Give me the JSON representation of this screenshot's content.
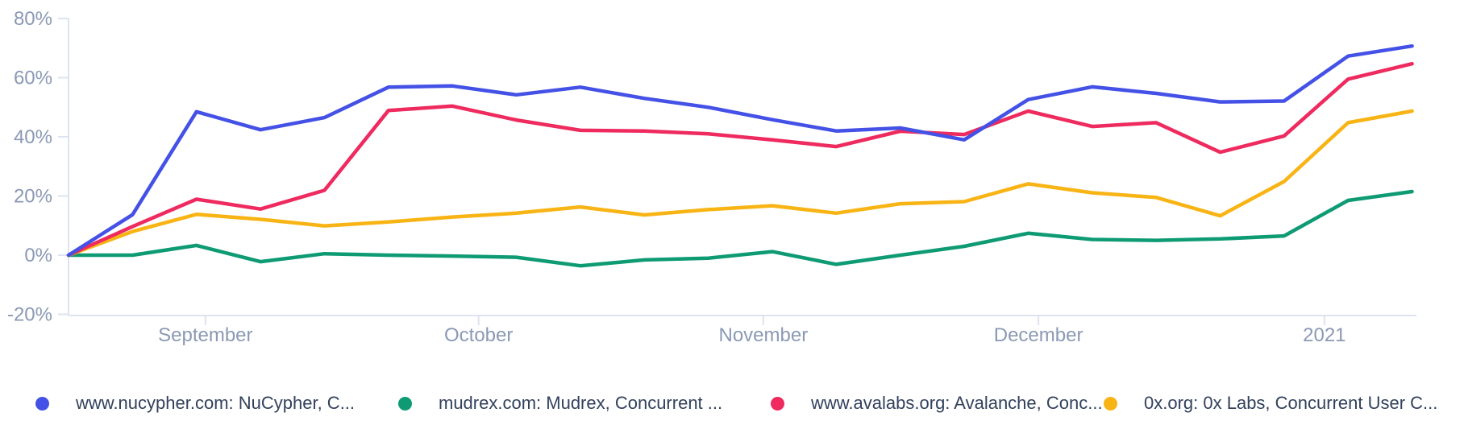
{
  "chart_data": {
    "type": "line",
    "title": "",
    "unit": "%",
    "ylim": [
      -20,
      80
    ],
    "grid": false,
    "legend_position": "bottom",
    "y_ticks": [
      {
        "label": "80%",
        "value": 80
      },
      {
        "label": "60%",
        "value": 60
      },
      {
        "label": "40%",
        "value": 40
      },
      {
        "label": "20%",
        "value": 20
      },
      {
        "label": "0%",
        "value": 0
      },
      {
        "label": "-20%",
        "value": -20
      }
    ],
    "x_ticks": [
      {
        "label": "September",
        "week": 2.14
      },
      {
        "label": "October",
        "week": 6.41
      },
      {
        "label": "November",
        "week": 10.86
      },
      {
        "label": "December",
        "week": 15.16
      },
      {
        "label": "2021",
        "week": 19.63
      }
    ],
    "weeks": 22,
    "series": [
      {
        "name": "www.nucypher.com: NuCypher, C...",
        "color": "#4451e6",
        "values": [
          0,
          13.7,
          48.5,
          42.4,
          46.5,
          56.8,
          57.2,
          54.2,
          56.8,
          53.0,
          50.0,
          45.8,
          42.0,
          43.0,
          39.0,
          52.6,
          56.9,
          54.7,
          51.8,
          52.1,
          67.3,
          70.7
        ]
      },
      {
        "name": "mudrex.com: Mudrex, Concurrent ...",
        "color": "#0e9b74",
        "values": [
          0,
          0,
          3.3,
          -2.2,
          0.5,
          0,
          -0.3,
          -0.7,
          -3.6,
          -1.6,
          -1.0,
          1.2,
          -3.1,
          0,
          3.0,
          7.4,
          5.3,
          5.0,
          5.5,
          6.5,
          18.5,
          21.5
        ]
      },
      {
        "name": "www.avalabs.org: Avalanche, Conc...",
        "color": "#ee2a5e",
        "values": [
          0,
          9.7,
          18.9,
          15.6,
          21.9,
          48.9,
          50.4,
          45.7,
          42.2,
          42.0,
          41.0,
          39.0,
          36.7,
          41.9,
          40.8,
          48.7,
          43.5,
          44.8,
          34.8,
          40.3,
          59.5,
          64.7
        ]
      },
      {
        "name": "0x.org: 0x Labs, Concurrent User C...",
        "color": "#f8b414",
        "values": [
          0,
          8.0,
          13.8,
          12.1,
          9.9,
          11.2,
          12.9,
          14.2,
          16.3,
          13.6,
          15.4,
          16.7,
          14.2,
          17.4,
          18.1,
          24.1,
          21.1,
          19.5,
          13.3,
          24.9,
          44.8,
          48.7
        ]
      }
    ]
  },
  "colors": {
    "background": "#ffffff",
    "axis_line": "#dde3f0",
    "axis_text": "#8b99b5",
    "legend_text": "#32415c"
  }
}
